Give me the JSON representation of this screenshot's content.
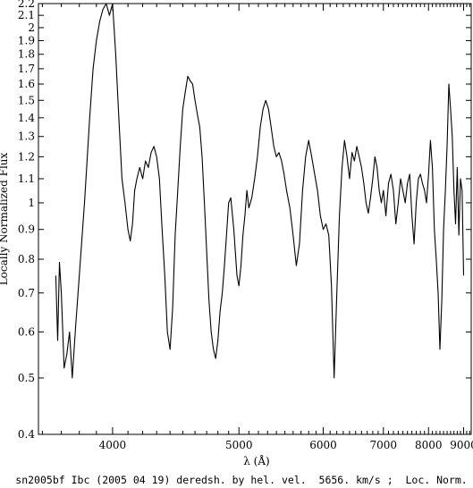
{
  "chart_data": {
    "type": "line",
    "title": "",
    "caption": "sn2005bf Ibc (2005 04 19) deredsh. by hel. vel.  5656. km/s ;  Loc. Norm.",
    "xlabel": "λ (Å)",
    "ylabel": "Locally Normalized Flux",
    "xscale": "reciprocal",
    "yscale": "log",
    "xlim": [
      3580,
      9250
    ],
    "ylim": [
      0.4,
      2.2
    ],
    "grid": false,
    "x_ticks": [
      4000,
      5000,
      6000,
      7000,
      8000,
      9000
    ],
    "x_tick_labels": [
      "4000",
      "5000",
      "6000",
      "7000",
      "8000",
      "9000"
    ],
    "y_ticks": [
      0.4,
      0.5,
      0.6,
      0.7,
      0.8,
      0.9,
      1,
      1.1,
      1.2,
      1.3,
      1.4,
      1.5,
      1.6,
      1.7,
      1.8,
      1.9,
      2,
      2.1,
      2.2
    ],
    "y_tick_labels": [
      "0.4",
      "0.5",
      "0.6",
      "0.7",
      "0.8",
      "0.9",
      "1",
      "1.1",
      "1.2",
      "1.3",
      "1.4",
      "1.5",
      "1.6",
      "1.7",
      "1.8",
      "1.9",
      "2",
      "2.1",
      "2.2"
    ],
    "series": [
      {
        "color": "#000000",
        "x": [
          3670,
          3680,
          3690,
          3700,
          3715,
          3730,
          3745,
          3760,
          3780,
          3800,
          3830,
          3860,
          3880,
          3900,
          3920,
          3940,
          3960,
          3980,
          4000,
          4020,
          4040,
          4060,
          4080,
          4100,
          4115,
          4130,
          4145,
          4160,
          4180,
          4200,
          4220,
          4240,
          4260,
          4280,
          4300,
          4320,
          4340,
          4360,
          4380,
          4400,
          4420,
          4440,
          4460,
          4480,
          4500,
          4520,
          4540,
          4560,
          4580,
          4600,
          4620,
          4640,
          4660,
          4680,
          4700,
          4720,
          4740,
          4760,
          4780,
          4800,
          4820,
          4840,
          4860,
          4880,
          4900,
          4920,
          4950,
          4980,
          5000,
          5020,
          5040,
          5060,
          5080,
          5100,
          5130,
          5160,
          5190,
          5220,
          5250,
          5280,
          5310,
          5340,
          5370,
          5400,
          5430,
          5460,
          5490,
          5520,
          5560,
          5600,
          5640,
          5680,
          5720,
          5760,
          5800,
          5840,
          5880,
          5920,
          5960,
          6000,
          6040,
          6080,
          6120,
          6160,
          6200,
          6240,
          6280,
          6320,
          6360,
          6400,
          6440,
          6480,
          6520,
          6560,
          6600,
          6640,
          6680,
          6720,
          6760,
          6800,
          6840,
          6880,
          6920,
          6960,
          7000,
          7050,
          7100,
          7150,
          7200,
          7250,
          7300,
          7350,
          7400,
          7450,
          7500,
          7550,
          7600,
          7650,
          7700,
          7750,
          7800,
          7850,
          7900,
          7950,
          8000,
          8050,
          8100,
          8150,
          8200,
          8250,
          8300,
          8350,
          8400,
          8450,
          8500,
          8550,
          8600,
          8650,
          8700,
          8750,
          8800,
          8850,
          8900,
          8950,
          9000
        ],
        "y": [
          0.75,
          0.58,
          0.79,
          0.7,
          0.52,
          0.55,
          0.6,
          0.5,
          0.62,
          0.75,
          1.0,
          1.4,
          1.7,
          1.9,
          2.05,
          2.15,
          2.2,
          2.1,
          2.2,
          1.8,
          1.4,
          1.1,
          1.0,
          0.9,
          0.86,
          0.92,
          1.05,
          1.1,
          1.15,
          1.1,
          1.18,
          1.15,
          1.22,
          1.25,
          1.2,
          1.1,
          0.9,
          0.75,
          0.6,
          0.56,
          0.66,
          0.88,
          1.05,
          1.25,
          1.45,
          1.55,
          1.65,
          1.62,
          1.6,
          1.5,
          1.42,
          1.35,
          1.2,
          1.0,
          0.82,
          0.68,
          0.6,
          0.56,
          0.54,
          0.58,
          0.65,
          0.7,
          0.78,
          0.88,
          1.0,
          1.02,
          0.9,
          0.75,
          0.72,
          0.78,
          0.88,
          0.95,
          1.05,
          0.98,
          1.02,
          1.1,
          1.2,
          1.35,
          1.45,
          1.5,
          1.45,
          1.35,
          1.25,
          1.2,
          1.22,
          1.18,
          1.12,
          1.05,
          0.98,
          0.88,
          0.78,
          0.85,
          1.05,
          1.2,
          1.28,
          1.2,
          1.12,
          1.05,
          0.95,
          0.9,
          0.92,
          0.88,
          0.72,
          0.5,
          0.7,
          0.95,
          1.15,
          1.28,
          1.2,
          1.1,
          1.22,
          1.18,
          1.25,
          1.2,
          1.15,
          1.08,
          1.0,
          0.96,
          1.02,
          1.1,
          1.2,
          1.15,
          1.05,
          1.0,
          1.05,
          0.95,
          1.08,
          1.12,
          1.05,
          0.92,
          1.0,
          1.1,
          1.05,
          1.0,
          1.08,
          1.12,
          0.95,
          0.85,
          1.0,
          1.1,
          1.12,
          1.08,
          1.05,
          1.0,
          1.12,
          1.28,
          1.15,
          0.9,
          0.8,
          0.7,
          0.56,
          0.68,
          0.9,
          1.05,
          1.25,
          1.6,
          1.45,
          1.3,
          1.05,
          0.92,
          1.15,
          0.88,
          1.1,
          1.05,
          0.75
        ]
      }
    ]
  }
}
